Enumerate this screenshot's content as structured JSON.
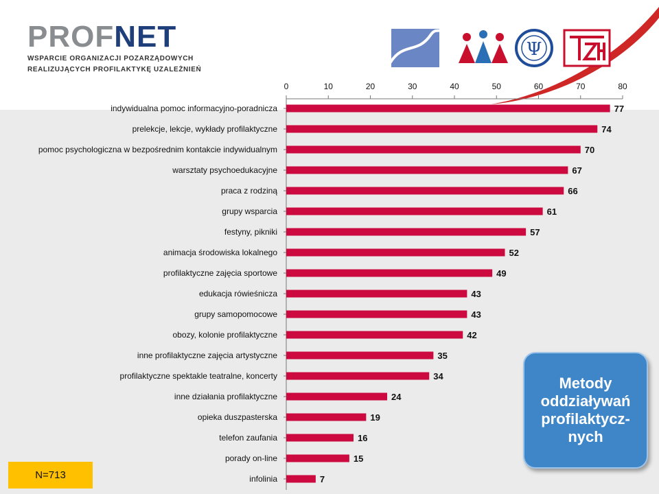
{
  "header": {
    "logo_part1": "PROF",
    "logo_part2": "NET",
    "tagline_line1": "WSPARCIE ORGANIZACJI POZARZĄDOWYCH",
    "tagline_line2": "REALIZUJĄCYCH PROFILAKTYKĘ UZALEŻNIEŃ",
    "partner_logos": [
      "wave-logo",
      "people-logo",
      "psychology-seal-logo",
      "tzn-logo"
    ]
  },
  "colors": {
    "bar": "#cc0a40",
    "accent_red": "#cc1a1a",
    "callout_blue": "#3f86c8",
    "n_box": "#ffc000"
  },
  "chart_data": {
    "type": "bar",
    "orientation": "horizontal",
    "x_axis_position": "top",
    "xlim": [
      0,
      80
    ],
    "xticks": [
      0,
      10,
      20,
      30,
      40,
      50,
      60,
      70,
      80
    ],
    "grid": false,
    "categories": [
      "indywidualna pomoc informacyjno-poradnicza",
      "prelekcje, lekcje, wykłady profilaktyczne",
      "pomoc psychologiczna w bezpośrednim kontakcie indywidualnym",
      "warsztaty psychoedukacyjne",
      "praca z rodziną",
      "grupy wsparcia",
      "festyny, pikniki",
      "animacja środowiska lokalnego",
      "profilaktyczne zajęcia sportowe",
      "edukacja rówieśnicza",
      "grupy samopomocowe",
      "obozy, kolonie profilaktyczne",
      "inne profilaktyczne zajęcia artystyczne",
      "profilaktyczne spektakle teatralne, koncerty",
      "inne działania profilaktyczne",
      "opieka duszpasterska",
      "telefon zaufania",
      "porady on-line",
      "infolinia"
    ],
    "values": [
      77,
      74,
      70,
      67,
      66,
      61,
      57,
      52,
      49,
      43,
      43,
      42,
      35,
      34,
      24,
      19,
      16,
      15,
      7
    ]
  },
  "sample_note": "N=713",
  "callout": {
    "text": "Metody\noddziaływań\nprofilaktycz-\nnych"
  }
}
